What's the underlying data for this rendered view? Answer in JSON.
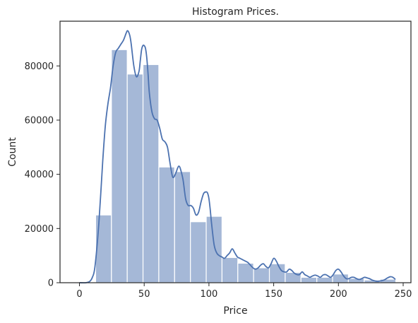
{
  "chart_data": {
    "type": "bar",
    "subtype": "histogram-with-kde",
    "title": "Histogram Prices.",
    "xlabel": "Price",
    "ylabel": "Count",
    "xlim": [
      -15,
      256
    ],
    "ylim": [
      0,
      96500
    ],
    "xticks": [
      0,
      50,
      100,
      150,
      200,
      250
    ],
    "yticks": [
      0,
      20000,
      40000,
      60000,
      80000
    ],
    "grid": false,
    "bins": [
      {
        "x0": 12.5,
        "x1": 24.7,
        "count": 25000
      },
      {
        "x0": 24.7,
        "x1": 36.9,
        "count": 86000
      },
      {
        "x0": 36.9,
        "x1": 49.1,
        "count": 77000
      },
      {
        "x0": 49.1,
        "x1": 61.3,
        "count": 80500
      },
      {
        "x0": 61.3,
        "x1": 73.5,
        "count": 42700
      },
      {
        "x0": 73.5,
        "x1": 85.7,
        "count": 41000
      },
      {
        "x0": 85.7,
        "x1": 97.9,
        "count": 22500
      },
      {
        "x0": 97.9,
        "x1": 110.1,
        "count": 24500
      },
      {
        "x0": 110.1,
        "x1": 122.3,
        "count": 9300
      },
      {
        "x0": 122.3,
        "x1": 134.5,
        "count": 7200
      },
      {
        "x0": 134.5,
        "x1": 146.7,
        "count": 5500
      },
      {
        "x0": 146.7,
        "x1": 158.9,
        "count": 7000
      },
      {
        "x0": 158.9,
        "x1": 171.1,
        "count": 3800
      },
      {
        "x0": 171.1,
        "x1": 183.3,
        "count": 2000
      },
      {
        "x0": 183.3,
        "x1": 195.5,
        "count": 2000
      },
      {
        "x0": 195.5,
        "x1": 207.7,
        "count": 3200
      },
      {
        "x0": 207.7,
        "x1": 219.9,
        "count": 1600
      },
      {
        "x0": 219.9,
        "x1": 232.1,
        "count": 1000
      },
      {
        "x0": 232.1,
        "x1": 244.3,
        "count": 1300
      }
    ],
    "kde": {
      "x": [
        0,
        5,
        8,
        10,
        12,
        15,
        18,
        20,
        22,
        24,
        26,
        28,
        30,
        32,
        34,
        36,
        37,
        38,
        39,
        40,
        42,
        44,
        46,
        47,
        48,
        49,
        50,
        51,
        52,
        53,
        54,
        56,
        58,
        60,
        62,
        64,
        66,
        68,
        70,
        72,
        74,
        76,
        77,
        78,
        80,
        82,
        84,
        86,
        88,
        90,
        92,
        94,
        96,
        98,
        99,
        100,
        101,
        102,
        104,
        106,
        108,
        110,
        112,
        114,
        116,
        118,
        120,
        122,
        124,
        126,
        128,
        130,
        132,
        134,
        136,
        138,
        140,
        142,
        144,
        146,
        148,
        150,
        152,
        154,
        156,
        158,
        160,
        162,
        164,
        166,
        168,
        170,
        172,
        174,
        176,
        178,
        180,
        182,
        184,
        186,
        188,
        190,
        192,
        194,
        196,
        198,
        200,
        202,
        204,
        206,
        208,
        210,
        212,
        214,
        216,
        218,
        220,
        222,
        224,
        226,
        228,
        230,
        232,
        234,
        236,
        238,
        240,
        242,
        244
      ],
      "y": [
        0,
        0,
        500,
        2000,
        6000,
        22000,
        45000,
        58000,
        66000,
        72000,
        80000,
        85000,
        86500,
        88000,
        89500,
        92000,
        93000,
        92500,
        91000,
        88000,
        80000,
        76000,
        78000,
        82000,
        86000,
        87500,
        87500,
        86500,
        83000,
        77000,
        70000,
        63000,
        60500,
        60000,
        57000,
        53000,
        52000,
        50000,
        44000,
        39000,
        40000,
        42500,
        43000,
        42000,
        38000,
        31000,
        28500,
        28500,
        27500,
        25000,
        26000,
        30000,
        33000,
        33500,
        33000,
        31000,
        27000,
        22000,
        14000,
        11000,
        10000,
        9500,
        9000,
        10000,
        11000,
        12500,
        11000,
        9500,
        9000,
        8500,
        8000,
        7500,
        6500,
        5500,
        5000,
        5500,
        6500,
        7000,
        6000,
        5500,
        7000,
        9000,
        8000,
        6000,
        4500,
        4000,
        4000,
        5000,
        4500,
        3500,
        3000,
        3000,
        4000,
        3000,
        2500,
        2000,
        2500,
        2800,
        2500,
        2000,
        2800,
        3000,
        2500,
        2000,
        3000,
        4500,
        5000,
        4000,
        2500,
        1500,
        1500,
        2000,
        2000,
        1500,
        1200,
        1500,
        2000,
        1800,
        1500,
        1000,
        700,
        500,
        600,
        800,
        1200,
        1800,
        2200,
        2000,
        1200
      ]
    }
  }
}
